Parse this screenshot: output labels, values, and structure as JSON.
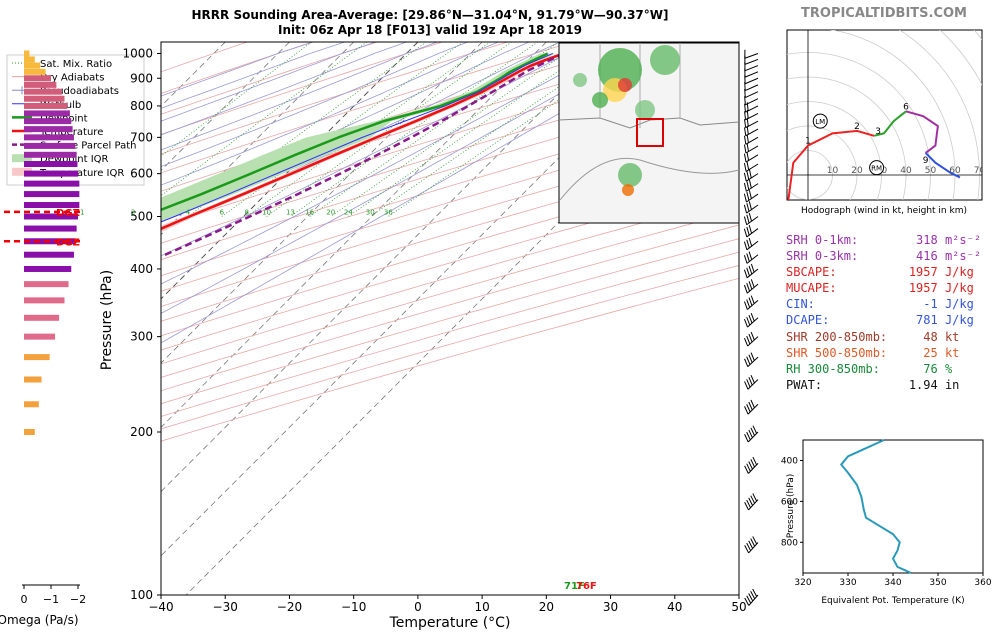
{
  "site": "TROPICALTIDBITS.COM",
  "title_line1": "HRRR Sounding Area-Average: [29.86°N—31.04°N, 91.79°W—90.37°W]",
  "title_line2": "Init: 06z Apr 18 [F013] valid 19z Apr 18 2019",
  "legend": [
    {
      "label": "Sat. Mix. Ratio",
      "style": "dotted",
      "color": "#2a9a2a"
    },
    {
      "label": "Dry Adiabats",
      "style": "line",
      "color": "#e8a0a0"
    },
    {
      "label": "Pseudoadiabats",
      "style": "tick",
      "color": "#8888cc"
    },
    {
      "label": "Wetbulb",
      "style": "line",
      "color": "#3030ff"
    },
    {
      "label": "Dewpoint",
      "style": "thick",
      "color": "#1a9a1a"
    },
    {
      "label": "Temperature",
      "style": "thick",
      "color": "#ee1111"
    },
    {
      "label": "Surface Parcel Path",
      "style": "dashed",
      "color": "#8a1a8a"
    },
    {
      "label": "Dewpoint IQR",
      "style": "patch",
      "color": "#b8e0b0"
    },
    {
      "label": "Temperature IQR",
      "style": "patch",
      "color": "#f8c8c8"
    }
  ],
  "chart_data": [
    {
      "type": "line",
      "title": "Skew-T log-P sounding",
      "xlabel": "Temperature (°C)",
      "ylabel": "Pressure (hPa)",
      "xlim": [
        -40,
        50
      ],
      "ylim": [
        1050,
        100
      ],
      "x_ticks": [
        -40,
        -30,
        -20,
        -10,
        0,
        10,
        20,
        30,
        40,
        50
      ],
      "y_ticks": [
        100,
        200,
        300,
        400,
        500,
        600,
        700,
        800,
        900,
        1000
      ],
      "y_scale": "log",
      "skew": "45°",
      "mixing_ratio_labels": [
        "1",
        "2",
        "4",
        "6",
        "8",
        "10",
        "13",
        "16",
        "20",
        "24",
        "30",
        "36"
      ],
      "surface_labels": {
        "dewpoint": "71F",
        "temperature": "76F"
      },
      "series": [
        {
          "name": "Temperature",
          "color": "#ee1111",
          "points": [
            [
              1000,
              24.5
            ],
            [
              975,
              22.8
            ],
            [
              950,
              21.3
            ],
            [
              925,
              20.3
            ],
            [
              900,
              19.5
            ],
            [
              850,
              17.8
            ],
            [
              800,
              15.2
            ],
            [
              750,
              12.0
            ],
            [
              700,
              8.4
            ],
            [
              650,
              4.7
            ],
            [
              600,
              0.8
            ],
            [
              550,
              -3.5
            ],
            [
              500,
              -8.4
            ],
            [
              450,
              -13.5
            ],
            [
              400,
              -19.2
            ],
            [
              350,
              -25.8
            ],
            [
              300,
              -33.5
            ],
            [
              250,
              -42.5
            ],
            [
              200,
              -53.5
            ],
            [
              180,
              -57.5
            ],
            [
              165,
              -57.0
            ],
            [
              150,
              -54.5
            ],
            [
              130,
              -55.5
            ],
            [
              115,
              -58.5
            ],
            [
              100,
              -63.0
            ]
          ]
        },
        {
          "name": "Dewpoint",
          "color": "#1a9a1a",
          "points": [
            [
              1000,
              22.0
            ],
            [
              975,
              21.0
            ],
            [
              950,
              20.0
            ],
            [
              925,
              19.0
            ],
            [
              900,
              18.5
            ],
            [
              850,
              17.0
            ],
            [
              800,
              13.5
            ],
            [
              750,
              7.0
            ],
            [
              700,
              2.5
            ],
            [
              650,
              -1.5
            ],
            [
              600,
              -5.5
            ],
            [
              550,
              -10.0
            ],
            [
              500,
              -15.5
            ],
            [
              450,
              -22.5
            ],
            [
              400,
              -31.0
            ],
            [
              350,
              -38.0
            ],
            [
              300,
              -44.0
            ],
            [
              250,
              -53.5
            ],
            [
              200,
              -64.0
            ],
            [
              150,
              -74.5
            ],
            [
              130,
              -82.0
            ],
            [
              115,
              -83.5
            ],
            [
              100,
              -86.0
            ]
          ]
        },
        {
          "name": "Wetbulb",
          "color": "#3030ff",
          "points": [
            [
              1000,
              22.8
            ],
            [
              950,
              20.3
            ],
            [
              900,
              18.8
            ],
            [
              850,
              17.2
            ],
            [
              800,
              14.2
            ],
            [
              750,
              10.3
            ],
            [
              700,
              6.2
            ],
            [
              650,
              2.5
            ],
            [
              600,
              -1.5
            ],
            [
              550,
              -5.8
            ],
            [
              500,
              -10.7
            ],
            [
              450,
              -16.5
            ],
            [
              400,
              -23.0
            ],
            [
              350,
              -29.5
            ],
            [
              300,
              -36.8
            ],
            [
              250,
              -46.0
            ],
            [
              200,
              -57.0
            ]
          ]
        },
        {
          "name": "Surface Parcel Path",
          "color": "#8a1a8a",
          "points": [
            [
              1000,
              24.5
            ],
            [
              930,
              21.6
            ],
            [
              900,
              20.8
            ],
            [
              850,
              19.4
            ],
            [
              800,
              17.8
            ],
            [
              750,
              16.0
            ],
            [
              700,
              13.8
            ],
            [
              650,
              11.3
            ],
            [
              600,
              8.4
            ],
            [
              550,
              5.0
            ],
            [
              500,
              1.0
            ],
            [
              450,
              -3.6
            ],
            [
              400,
              -9.0
            ],
            [
              350,
              -15.5
            ],
            [
              300,
              -23.5
            ],
            [
              250,
              -33.0
            ],
            [
              200,
              -45.0
            ],
            [
              150,
              -60.0
            ],
            [
              115,
              -73.0
            ],
            [
              100,
              -80.0
            ]
          ]
        }
      ]
    },
    {
      "type": "bar",
      "title": "",
      "xlabel": "Omega (Pa/s)",
      "x_ticks": [
        "0",
        "−1",
        "−2"
      ],
      "xlim": [
        0.3,
        -2.3
      ],
      "annotations": [
        "DGZ",
        "DGZ"
      ],
      "dgz_pressure": [
        450,
        510
      ],
      "levels": [
        200,
        225,
        250,
        275,
        300,
        325,
        350,
        375,
        400,
        425,
        450,
        475,
        500,
        525,
        550,
        575,
        600,
        625,
        650,
        675,
        700,
        725,
        750,
        775,
        800,
        825,
        850,
        875,
        900,
        925,
        950,
        975,
        1000
      ],
      "values": [
        -0.4,
        -0.55,
        -0.65,
        -0.95,
        -1.15,
        -1.3,
        -1.5,
        -1.65,
        -1.75,
        -1.85,
        -1.9,
        -1.95,
        -2.0,
        -2.05,
        -2.05,
        -2.05,
        -2.0,
        -1.98,
        -1.95,
        -1.9,
        -1.85,
        -1.8,
        -1.75,
        -1.7,
        -1.6,
        -1.5,
        -1.4,
        -1.2,
        -1.0,
        -0.8,
        -0.6,
        -0.4,
        -0.2
      ]
    },
    {
      "type": "line",
      "title": "",
      "xlabel": "Hodograph (wind in kt, height in km)",
      "x_ticks": [
        10,
        20,
        30,
        40,
        50,
        60,
        70
      ],
      "markers": [
        "LM",
        "RM"
      ],
      "height_labels": [
        "1",
        "2",
        "3",
        "6",
        "9"
      ],
      "segments": [
        {
          "range": "0-3 km",
          "color": "#ee2222",
          "points": [
            [
              -5,
              -25
            ],
            [
              -8,
              -10
            ],
            [
              -6,
              5
            ],
            [
              0,
              12
            ],
            [
              10,
              17
            ],
            [
              20,
              18
            ],
            [
              27,
              16
            ]
          ]
        },
        {
          "range": "3-6 km",
          "color": "#2aa02a",
          "points": [
            [
              27,
              16
            ],
            [
              31,
              17
            ],
            [
              35,
              22
            ],
            [
              40,
              26
            ]
          ]
        },
        {
          "range": "6-9 km",
          "color": "#a030a0",
          "points": [
            [
              40,
              26
            ],
            [
              47,
              24
            ],
            [
              53,
              20
            ],
            [
              52,
              12
            ],
            [
              48,
              9
            ]
          ]
        },
        {
          "range": "9-12 km",
          "color": "#3050e0",
          "points": [
            [
              48,
              9
            ],
            [
              52,
              5
            ],
            [
              58,
              1
            ],
            [
              62,
              -1
            ]
          ]
        }
      ],
      "lm": [
        5,
        22
      ],
      "rm": [
        28,
        3
      ]
    },
    {
      "type": "line",
      "title": "",
      "xlabel": "Equivalent Pot. Temperature (K)",
      "ylabel": "Pressure (hPa)",
      "xlim": [
        320,
        360
      ],
      "ylim": [
        950,
        300
      ],
      "x_ticks": [
        320,
        330,
        340,
        350,
        360
      ],
      "y_ticks": [
        400,
        600,
        800
      ],
      "series": [
        {
          "name": "Theta-E",
          "color": "#2a9ab8",
          "points": [
            [
              300,
              338
            ],
            [
              340,
              334
            ],
            [
              380,
              330
            ],
            [
              420,
              328.5
            ],
            [
              460,
              330
            ],
            [
              520,
              332
            ],
            [
              580,
              333
            ],
            [
              640,
              333.5
            ],
            [
              680,
              334
            ],
            [
              720,
              337
            ],
            [
              760,
              340
            ],
            [
              800,
              341.5
            ],
            [
              840,
              341
            ],
            [
              880,
              340
            ],
            [
              920,
              341
            ],
            [
              940,
              343
            ],
            [
              950,
              344
            ]
          ]
        }
      ]
    }
  ],
  "stats": [
    {
      "label": "SRH 0-1km:",
      "value": "318",
      "unit": "m²s⁻²",
      "color": "#9933aa"
    },
    {
      "label": "SRH 0-3km:",
      "value": "416",
      "unit": "m²s⁻²",
      "color": "#9933aa"
    },
    {
      "label": "SBCAPE:",
      "value": "1957",
      "unit": "J/kg",
      "color": "#dd2222"
    },
    {
      "label": "MUCAPE:",
      "value": "1957",
      "unit": "J/kg",
      "color": "#dd2222"
    },
    {
      "label": "CIN:",
      "value": "-1",
      "unit": "J/kg",
      "color": "#3355dd"
    },
    {
      "label": "DCAPE:",
      "value": "781",
      "unit": "J/kg",
      "color": "#3355dd"
    },
    {
      "label": "SHR 200-850mb:",
      "value": "48",
      "unit": "kt",
      "color": "#a03c28"
    },
    {
      "label": "SHR 500-850mb:",
      "value": "25",
      "unit": "kt",
      "color": "#e05a28"
    },
    {
      "label": "RH 300-850mb:",
      "value": "76",
      "unit": "%",
      "color": "#1a8a3a"
    },
    {
      "label": "PWAT:",
      "value": "1.94",
      "unit": "in",
      "color": "#111111"
    }
  ]
}
